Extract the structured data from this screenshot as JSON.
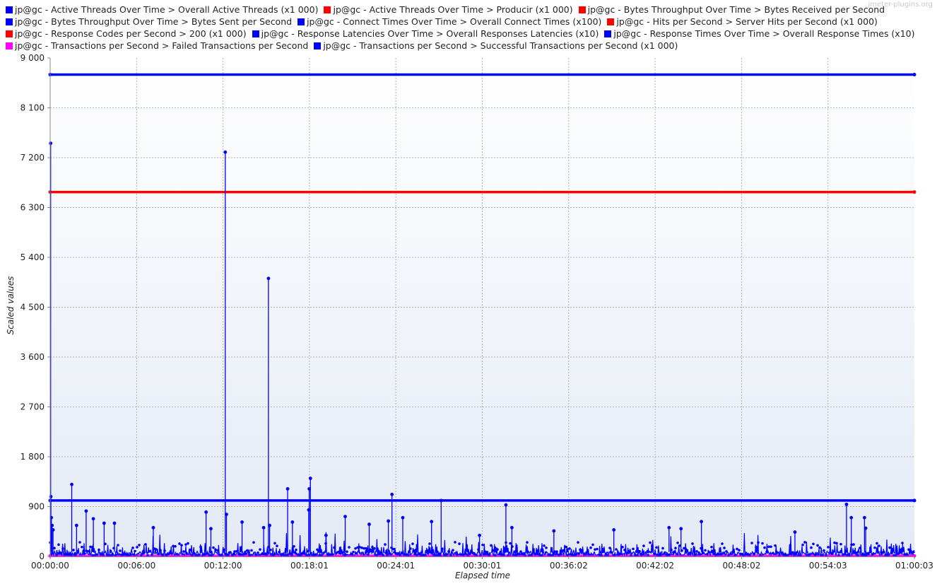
{
  "watermark": "jmeter-plugins.org",
  "chart_data": {
    "type": "line",
    "xlabel": "Elapsed time",
    "ylabel": "Scaled values",
    "ylim": [
      0,
      9000
    ],
    "yticks": [
      "9 000",
      "8 100",
      "7 200",
      "6 300",
      "5 400",
      "4 500",
      "3 600",
      "2 700",
      "1 800",
      "900",
      "0"
    ],
    "xticks": [
      "00:00:00",
      "00:06:00",
      "00:12:00",
      "00:18:01",
      "00:24:01",
      "00:30:01",
      "00:36:02",
      "00:42:02",
      "00:48:02",
      "00:54:03",
      "01:00:03"
    ],
    "xlim_seconds": [
      0,
      3603
    ],
    "grid": true,
    "legend_position": "top",
    "legend_rows": [
      [
        {
          "label": "jp@gc - Active Threads Over Time > Overall Active Threads (x1 000)",
          "color": "#0000ff"
        },
        {
          "label": "jp@gc - Active Threads Over Time > Producir (x1 000)",
          "color": "#ff0000"
        },
        {
          "label": "jp@gc - Bytes Throughput Over Time > Bytes Received per Second",
          "color": "#ff0000"
        }
      ],
      [
        {
          "label": "jp@gc - Bytes Throughput Over Time > Bytes Sent per Second",
          "color": "#0000ff"
        },
        {
          "label": "jp@gc - Connect Times Over Time > Overall Connect Times (x100)",
          "color": "#0000ff"
        },
        {
          "label": "jp@gc - Hits per Second > Server Hits per Second (x1 000)",
          "color": "#ff0000"
        }
      ],
      [
        {
          "label": "jp@gc - Response Codes per Second > 200 (x1 000)",
          "color": "#ff0000"
        },
        {
          "label": "jp@gc - Response Latencies Over Time > Overall Responses Latencies (x10)",
          "color": "#0000ff"
        },
        {
          "label": "jp@gc - Response Times Over Time > Overall Response Times (x10)",
          "color": "#0000ff"
        }
      ],
      [
        {
          "label": "jp@gc - Transactions per Second > Failed Transactions per Second",
          "color": "#ff00ff"
        },
        {
          "label": "jp@gc - Transactions per Second > Successful Transactions per Second (x1 000)",
          "color": "#0000ff"
        }
      ]
    ],
    "series": [
      {
        "color": "#0000ff",
        "kind": "flat",
        "y": 8700
      },
      {
        "color": "#ff0000",
        "kind": "flat",
        "y": 6580
      },
      {
        "color": "#0000ff",
        "kind": "flat",
        "y": 1010
      },
      {
        "color": "#ff00ff",
        "kind": "flat",
        "y": 10
      },
      {
        "color": "#0000ff",
        "kind": "spikes",
        "points": [
          [
            2,
            7460
          ],
          [
            3,
            1080
          ],
          [
            5,
            700
          ],
          [
            8,
            560
          ],
          [
            12,
            480
          ],
          [
            90,
            1300
          ],
          [
            110,
            560
          ],
          [
            150,
            820
          ],
          [
            180,
            680
          ],
          [
            225,
            600
          ],
          [
            268,
            600
          ],
          [
            430,
            520
          ],
          [
            650,
            800
          ],
          [
            670,
            500
          ],
          [
            730,
            7300
          ],
          [
            735,
            760
          ],
          [
            800,
            620
          ],
          [
            890,
            520
          ],
          [
            910,
            5020
          ],
          [
            915,
            560
          ],
          [
            990,
            1220
          ],
          [
            1010,
            620
          ],
          [
            1080,
            1220
          ],
          [
            1085,
            1410
          ],
          [
            1078,
            840
          ],
          [
            1150,
            380
          ],
          [
            1230,
            720
          ],
          [
            1330,
            580
          ],
          [
            1410,
            640
          ],
          [
            1425,
            1120
          ],
          [
            1470,
            700
          ],
          [
            1590,
            630
          ],
          [
            1630,
            1010
          ],
          [
            1790,
            380
          ],
          [
            1900,
            930
          ],
          [
            1925,
            520
          ],
          [
            2100,
            460
          ],
          [
            2350,
            480
          ],
          [
            2580,
            520
          ],
          [
            2715,
            630
          ],
          [
            2630,
            500
          ],
          [
            3105,
            440
          ],
          [
            3320,
            940
          ],
          [
            3340,
            700
          ],
          [
            3395,
            700
          ],
          [
            3400,
            510
          ]
        ],
        "baseline_noise": {
          "min": 20,
          "max": 260
        }
      }
    ]
  }
}
